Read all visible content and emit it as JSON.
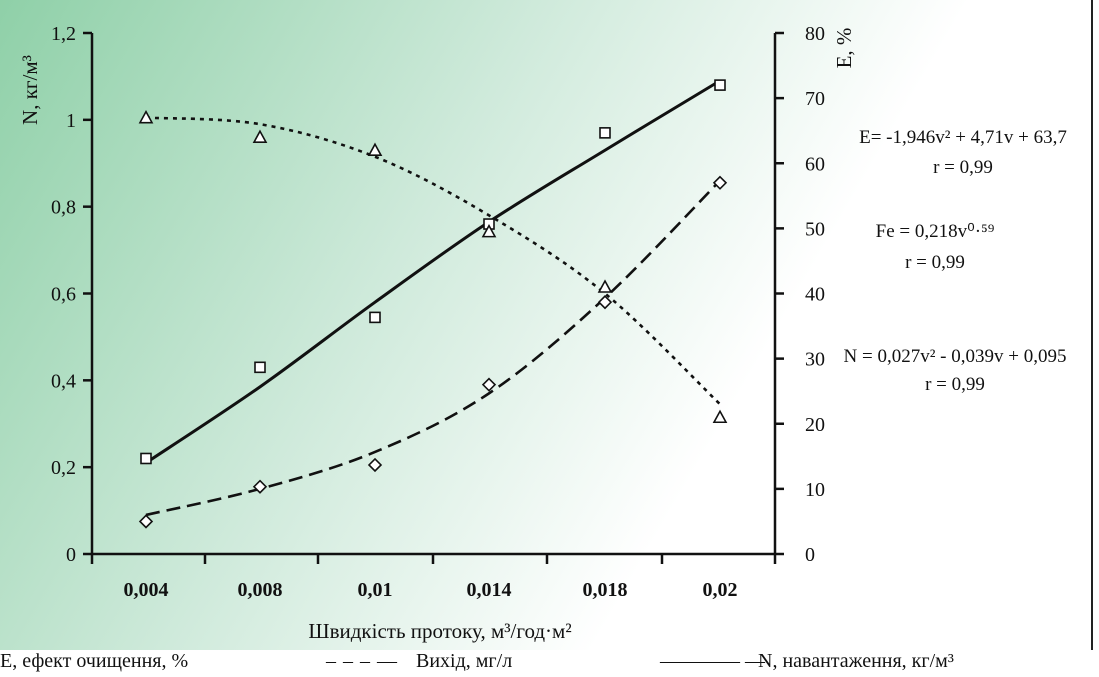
{
  "chart_data": {
    "type": "line",
    "xlabel": "Швидкість протоку, м³/год·м²",
    "ylabel_left": "N, кг/м³",
    "ylabel_right": "E, %",
    "categories": [
      "0,004",
      "0,008",
      "0,01",
      "0,014",
      "0,018",
      "0,02"
    ],
    "y_left": {
      "range": [
        0,
        1.2
      ],
      "ticks": [
        "0",
        "0,2",
        "0,4",
        "0,6",
        "0,8",
        "1",
        "1,2"
      ]
    },
    "y_right": {
      "range": [
        0,
        80
      ],
      "ticks": [
        "0",
        "10",
        "20",
        "30",
        "40",
        "50",
        "60",
        "70",
        "80"
      ]
    },
    "series": [
      {
        "name": "N, навантаження, кг/м³",
        "axis": "left",
        "marker": "square",
        "line": "solid",
        "values": [
          0.22,
          0.43,
          0.545,
          0.76,
          0.97,
          1.08
        ],
        "fit": [
          0.21,
          0.385,
          0.58,
          0.765,
          0.93,
          1.09
        ]
      },
      {
        "name": "Вихід, мг/л",
        "axis": "left",
        "marker": "diamond",
        "line": "dashed",
        "values": [
          0.075,
          0.155,
          0.205,
          0.39,
          0.58,
          0.855
        ],
        "fit": [
          0.09,
          0.15,
          0.235,
          0.37,
          0.59,
          0.86
        ]
      },
      {
        "name": "E, ефект очищення, %",
        "axis": "right",
        "marker": "triangle",
        "line": "dotted",
        "values": [
          67,
          64,
          62,
          49.5,
          41,
          21
        ],
        "fit": [
          67,
          66,
          61,
          52,
          40,
          23
        ]
      }
    ],
    "annotations": [
      {
        "lines": [
          "E= -1,946v² + 4,71v + 63,7",
          "r = 0,99"
        ]
      },
      {
        "lines": [
          "Fe = 0,218v⁰·⁵⁹",
          "r = 0,99"
        ]
      },
      {
        "lines": [
          "N = 0,027v² - 0,039v + 0,095",
          "r = 0,99"
        ]
      }
    ],
    "grid": false
  },
  "legend": {
    "e_label": "E, ефект очищення, %",
    "out_sym": "– – – —",
    "out_label": "Вихід, мг/л",
    "n_sym": "———— —",
    "n_label": "N, навантаження, кг/м³"
  }
}
